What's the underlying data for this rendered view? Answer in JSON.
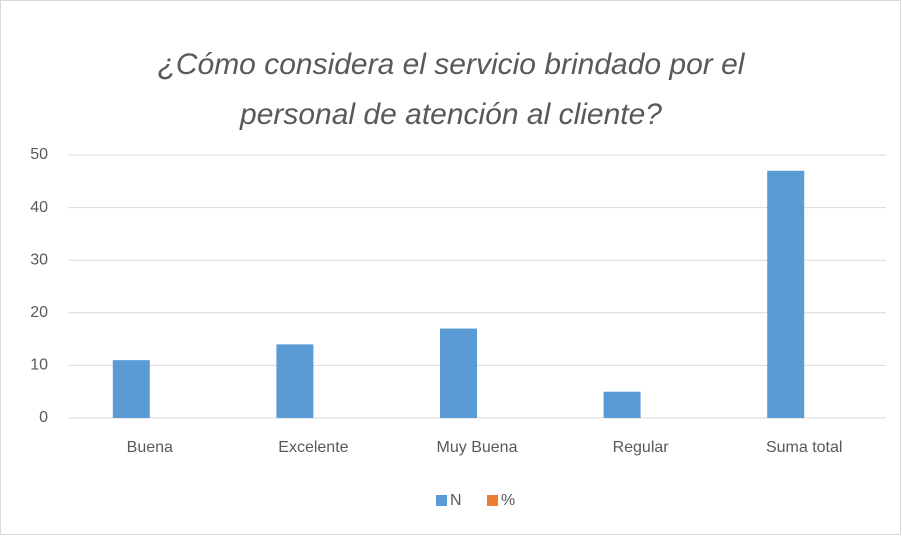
{
  "chart_data": {
    "type": "bar",
    "title": "¿Cómo considera el servicio brindado por el personal de atención al cliente?",
    "categories": [
      "Buena",
      "Excelente",
      "Muy Buena",
      "Regular",
      "Suma total"
    ],
    "series": [
      {
        "name": "N",
        "color": "#5b9bd5",
        "values": [
          11,
          14,
          17,
          5,
          47
        ]
      },
      {
        "name": "%",
        "color": "#ed7d31",
        "values": [
          0,
          0,
          0,
          0,
          0
        ]
      }
    ],
    "ylim": [
      0,
      50
    ],
    "yticks": [
      0,
      10,
      20,
      30,
      40,
      50
    ],
    "grid": true,
    "legend": "bottom"
  }
}
